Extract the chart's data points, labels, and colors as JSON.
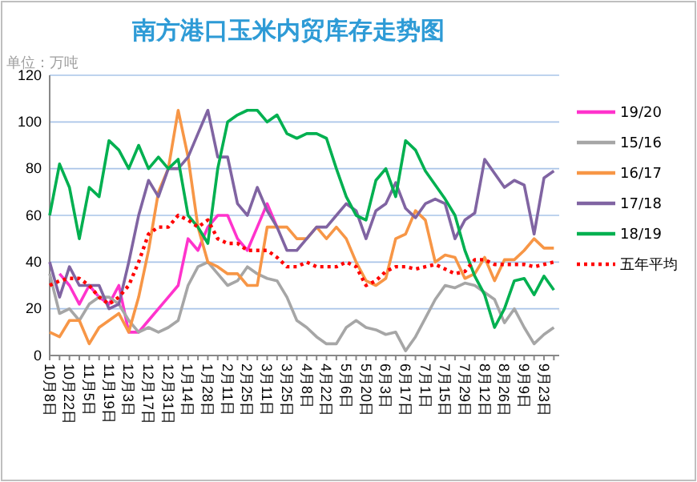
{
  "chart_data": {
    "type": "line",
    "title": "南方港口玉米内贸库存走势图",
    "ylabel": "单位：万吨",
    "categories": [
      "10月8日",
      null,
      "10月22日",
      null,
      "11月5日",
      null,
      "11月19日",
      null,
      "12月3日",
      null,
      "12月17日",
      null,
      "12月31日",
      null,
      "1月14日",
      null,
      "1月28日",
      null,
      "2月11日",
      null,
      "2月25日",
      null,
      "3月11日",
      null,
      "3月25日",
      null,
      "4月8日",
      null,
      "4月22日",
      null,
      "5月6日",
      null,
      "5月20日",
      null,
      "6月3日",
      null,
      "6月17日",
      null,
      "7月1日",
      null,
      "7月15日",
      null,
      "7月29日",
      null,
      "8月12日",
      null,
      "8月26日",
      null,
      "9月9日",
      null,
      "9月23日",
      null
    ],
    "ylim": [
      0,
      120
    ],
    "yticks": [
      0,
      20,
      40,
      60,
      80,
      100,
      120
    ],
    "grid": "y",
    "legend": "right",
    "series": [
      {
        "name": "19/20",
        "color": "#ff33cc",
        "values": [
          null,
          35,
          30,
          22,
          30,
          25,
          22,
          30,
          10,
          10,
          15,
          20,
          25,
          30,
          50,
          45,
          55,
          60,
          60,
          50,
          45,
          55,
          65,
          55,
          null,
          null,
          null,
          null,
          null,
          null,
          null,
          null,
          null,
          null,
          null,
          null,
          null,
          null,
          null,
          null,
          null,
          null,
          null,
          null,
          null,
          null,
          null,
          null,
          null,
          null,
          null,
          null
        ]
      },
      {
        "name": "15/16",
        "color": "#a6a6a6",
        "values": [
          35,
          18,
          20,
          15,
          22,
          25,
          25,
          22,
          15,
          10,
          12,
          10,
          12,
          15,
          30,
          38,
          40,
          35,
          30,
          32,
          38,
          35,
          33,
          32,
          25,
          15,
          12,
          8,
          5,
          5,
          12,
          15,
          12,
          11,
          9,
          10,
          2,
          8,
          16,
          24,
          30,
          29,
          31,
          30,
          27,
          24,
          14,
          20,
          12,
          5,
          9,
          12
        ]
      },
      {
        "name": "16/17",
        "color": "#f79646",
        "values": [
          10,
          8,
          15,
          15,
          5,
          12,
          15,
          18,
          10,
          25,
          45,
          70,
          80,
          105,
          85,
          55,
          40,
          38,
          35,
          35,
          30,
          30,
          55,
          55,
          55,
          50,
          50,
          55,
          50,
          55,
          50,
          40,
          32,
          30,
          33,
          50,
          52,
          62,
          58,
          40,
          43,
          42,
          33,
          35,
          42,
          32,
          41,
          41,
          45,
          50,
          46,
          46
        ]
      },
      {
        "name": "17/18",
        "color": "#8064a2",
        "values": [
          40,
          25,
          38,
          30,
          30,
          30,
          20,
          22,
          40,
          60,
          75,
          68,
          80,
          80,
          85,
          95,
          105,
          85,
          85,
          65,
          60,
          72,
          62,
          55,
          45,
          45,
          50,
          55,
          55,
          60,
          65,
          62,
          50,
          62,
          65,
          74,
          63,
          59,
          65,
          67,
          65,
          50,
          58,
          61,
          84,
          78,
          72,
          75,
          73,
          52,
          76,
          79
        ]
      },
      {
        "name": "18/19",
        "color": "#00b050",
        "values": [
          60,
          82,
          72,
          50,
          72,
          68,
          92,
          88,
          80,
          90,
          80,
          85,
          80,
          84,
          60,
          55,
          48,
          80,
          100,
          103,
          105,
          105,
          100,
          103,
          95,
          93,
          95,
          95,
          93,
          80,
          68,
          60,
          58,
          75,
          80,
          68,
          92,
          88,
          79,
          73,
          67,
          60,
          45,
          34,
          26,
          12,
          20,
          32,
          33,
          26,
          34,
          28
        ]
      },
      {
        "name": "五年平均",
        "color": "#ff0000",
        "line_style": "dotted",
        "values": [
          30,
          32,
          33,
          33,
          30,
          25,
          22,
          25,
          30,
          40,
          52,
          55,
          55,
          60,
          58,
          55,
          58,
          50,
          48,
          48,
          45,
          45,
          45,
          42,
          38,
          38,
          40,
          38,
          38,
          38,
          40,
          38,
          30,
          32,
          36,
          38,
          38,
          37,
          38,
          39,
          37,
          35,
          36,
          41,
          41,
          39,
          39,
          39,
          39,
          38,
          39,
          40
        ]
      }
    ]
  }
}
